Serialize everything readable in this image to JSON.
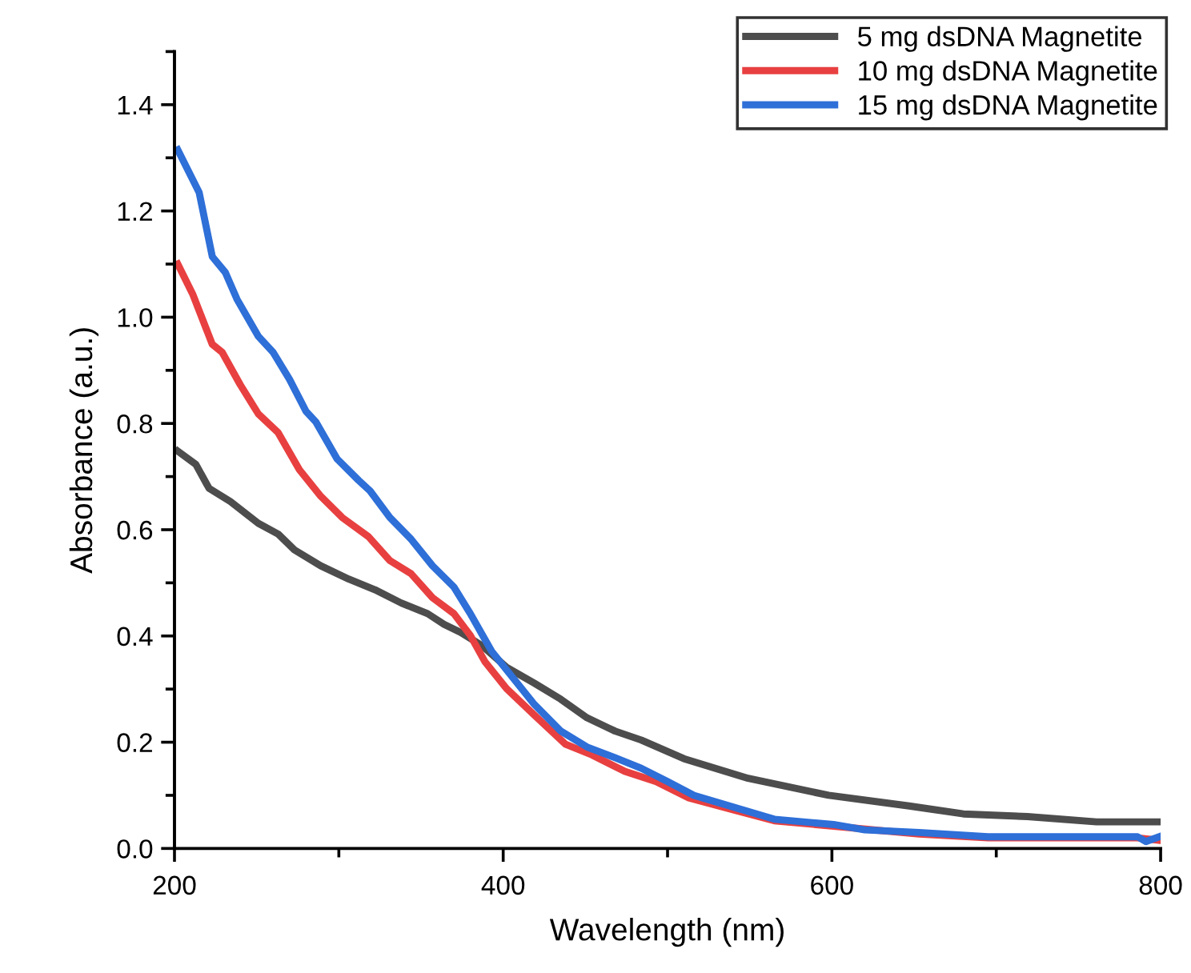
{
  "chart_data": {
    "type": "line",
    "xlabel": "Wavelength (nm)",
    "ylabel": "Absorbance (a.u.)",
    "xlim": [
      200,
      800
    ],
    "xticks": [
      200,
      400,
      600,
      800
    ],
    "ylim": [
      0,
      1.5
    ],
    "yticks": [
      {
        "value": 0,
        "label": "0.0"
      },
      0.2,
      0.4,
      0.6,
      0.8,
      {
        "value": 1,
        "label": "1.0"
      },
      1.2,
      1.4
    ],
    "legend": "top right",
    "grid": false,
    "series": [
      {
        "name": "5 mg dsDNA Magnetite",
        "color": "#4d4d4d",
        "x": [
          202,
          213,
          221,
          234,
          251,
          263,
          273,
          289,
          306,
          322,
          338,
          354,
          364,
          374,
          387,
          402,
          419,
          435,
          451,
          468,
          484,
          510,
          549,
          598,
          647,
          680,
          719,
          761,
          800
        ],
        "values": [
          0.748,
          0.723,
          0.678,
          0.653,
          0.612,
          0.592,
          0.562,
          0.532,
          0.507,
          0.487,
          0.462,
          0.442,
          0.422,
          0.407,
          0.382,
          0.341,
          0.311,
          0.281,
          0.246,
          0.221,
          0.204,
          0.169,
          0.132,
          0.1,
          0.08,
          0.065,
          0.06,
          0.05,
          0.05
        ]
      },
      {
        "name": "10 mg dsDNA Magnetite",
        "color": "#e84040",
        "x": [
          202,
          211,
          223,
          229,
          240,
          251,
          263,
          276,
          289,
          302,
          318,
          331,
          344,
          357,
          370,
          380,
          389,
          402,
          419,
          438,
          454,
          474,
          493,
          513,
          565,
          601,
          653,
          695,
          786,
          800
        ],
        "values": [
          1.1,
          1.044,
          0.949,
          0.934,
          0.873,
          0.818,
          0.783,
          0.713,
          0.663,
          0.623,
          0.587,
          0.542,
          0.517,
          0.472,
          0.442,
          0.401,
          0.351,
          0.301,
          0.251,
          0.196,
          0.176,
          0.145,
          0.126,
          0.095,
          0.052,
          0.042,
          0.027,
          0.02,
          0.02,
          0.015
        ]
      },
      {
        "name": "15 mg dsDNA Magnetite",
        "color": "#2e6fd8",
        "x": [
          202,
          215,
          223,
          231,
          238,
          251,
          260,
          270,
          280,
          286,
          299,
          312,
          319,
          331,
          344,
          357,
          370,
          380,
          393,
          406,
          419,
          435,
          451,
          468,
          484,
          500,
          516,
          565,
          601,
          620,
          653,
          695,
          786,
          791,
          800
        ],
        "values": [
          1.315,
          1.235,
          1.114,
          1.084,
          1.034,
          0.964,
          0.934,
          0.883,
          0.823,
          0.803,
          0.733,
          0.693,
          0.673,
          0.623,
          0.582,
          0.532,
          0.492,
          0.442,
          0.371,
          0.321,
          0.271,
          0.221,
          0.191,
          0.171,
          0.151,
          0.126,
          0.1,
          0.055,
          0.045,
          0.035,
          0.03,
          0.022,
          0.022,
          0.013,
          0.023
        ]
      }
    ]
  }
}
